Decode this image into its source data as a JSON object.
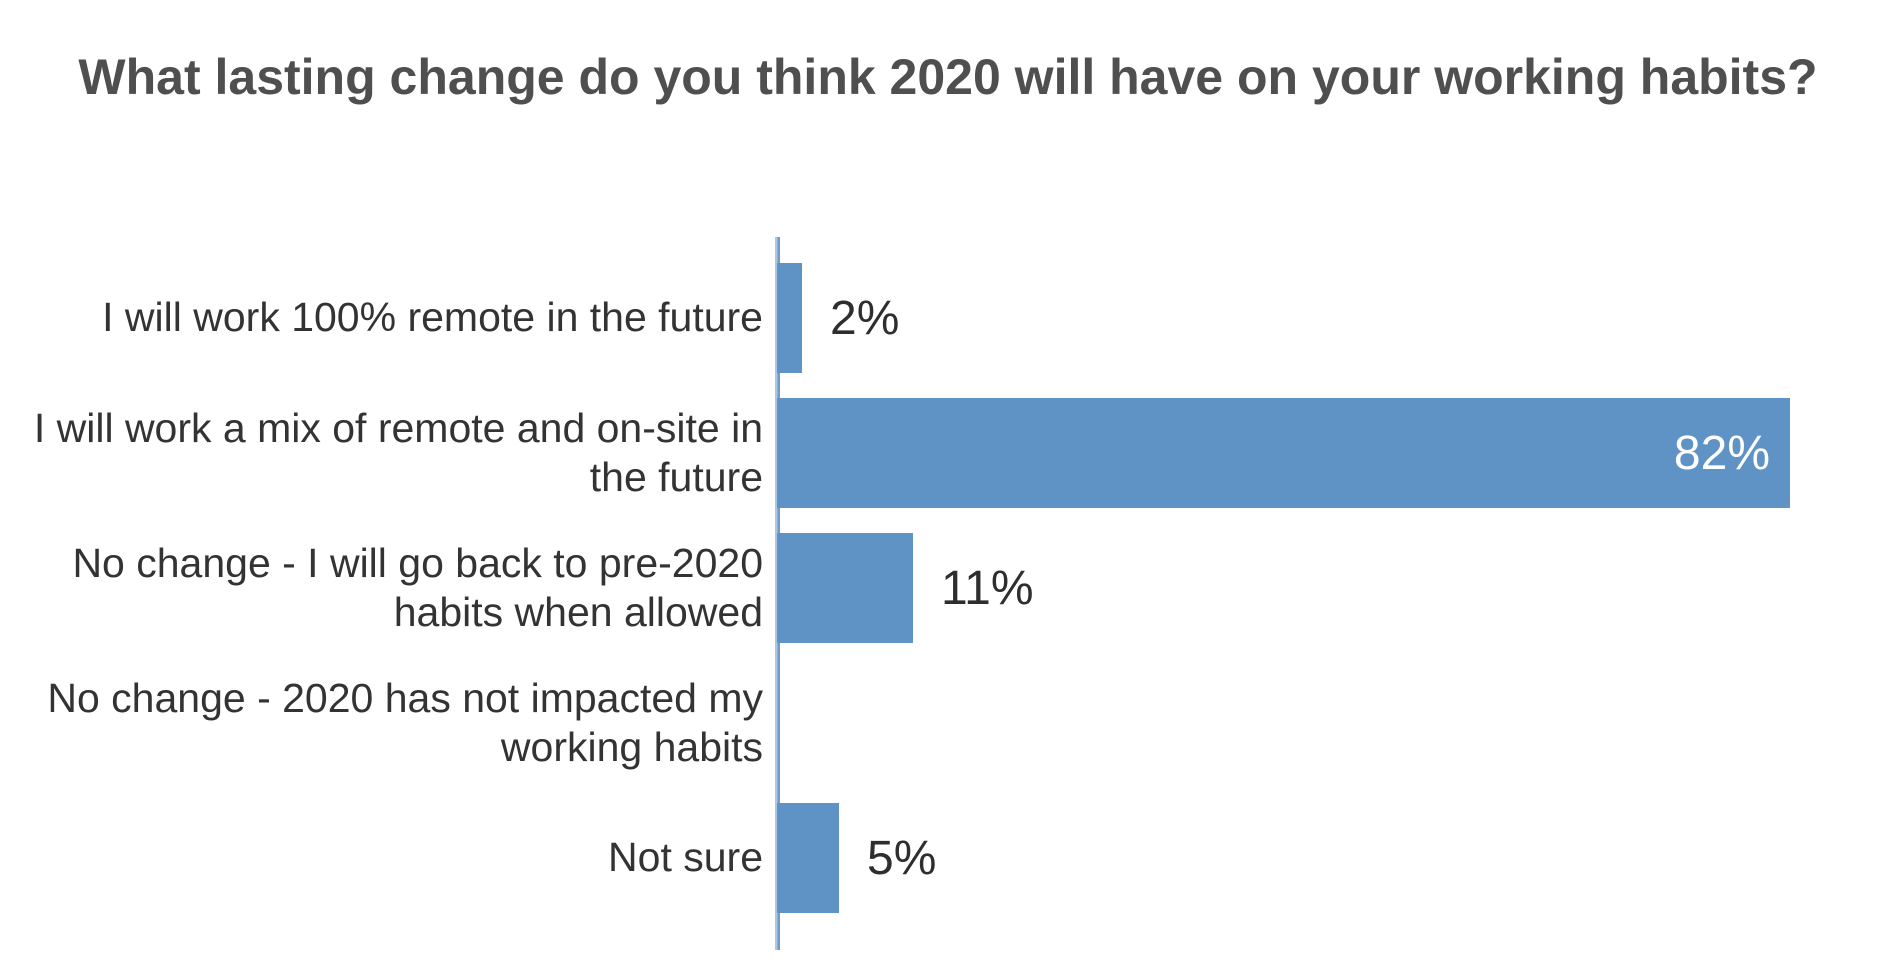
{
  "page": {
    "background": "#ffffff"
  },
  "chart_data": {
    "type": "bar",
    "orientation": "horizontal",
    "title": "What lasting change do you think 2020 will have on your working habits?",
    "categories": [
      "I will work 100% remote in the future",
      "I will work a mix of remote and on-site in the future",
      "No change - I will go back to pre-2020 habits when allowed",
      "No change - 2020 has not impacted my working habits",
      "Not sure"
    ],
    "values": [
      2,
      82,
      11,
      0,
      5
    ],
    "value_labels": [
      "2%",
      "82%",
      "11%",
      "",
      "5%"
    ],
    "unit": "%",
    "xlim": [
      0,
      82
    ],
    "grid": false,
    "legend": false,
    "bar_color": "#6093c5",
    "axis_line_color_light": "#aac8e4",
    "axis_line_color_dark": "#6e9cca",
    "title_color": "#4f4f4f",
    "label_color": "#333333",
    "value_color": "#2e2e2e",
    "value_color_inside": "#ffffff"
  }
}
